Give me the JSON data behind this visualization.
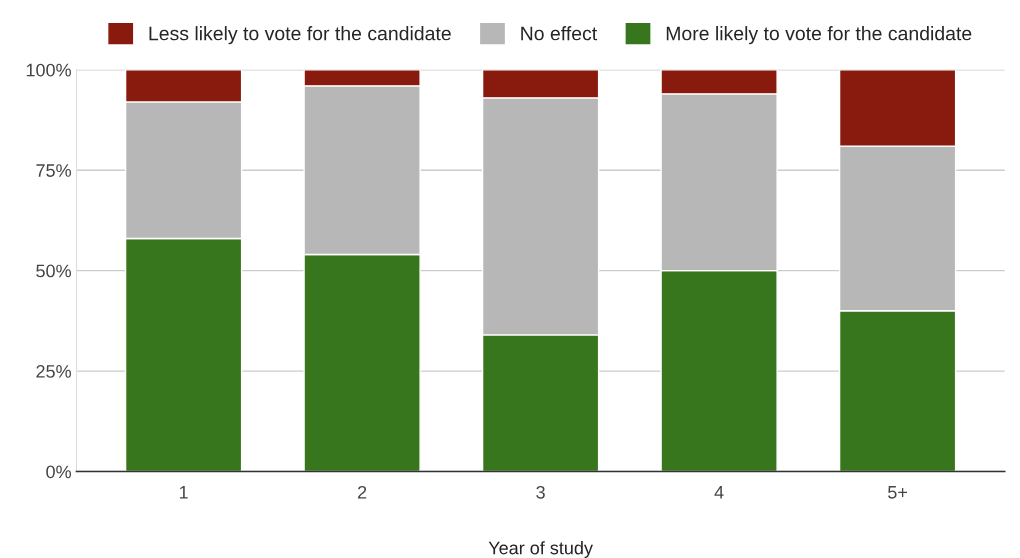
{
  "chart_data": {
    "type": "bar",
    "stacked": true,
    "xlabel": "Year of study",
    "categories": [
      "1",
      "2",
      "3",
      "4",
      "5+"
    ],
    "series": [
      {
        "name": "More likely to vote for the candidate",
        "color": "#38761d",
        "values": [
          58,
          54,
          34,
          50,
          40
        ]
      },
      {
        "name": "No effect",
        "color": "#b7b7b7",
        "values": [
          34,
          42,
          59,
          44,
          41
        ]
      },
      {
        "name": "Less likely to vote for the candidate",
        "color": "#891a0e",
        "values": [
          8,
          4,
          7,
          6,
          19
        ]
      }
    ],
    "ylim": [
      0,
      100
    ],
    "yticks": [
      {
        "value": 0,
        "label": "0%"
      },
      {
        "value": 25,
        "label": "25%"
      },
      {
        "value": 50,
        "label": "50%"
      },
      {
        "value": 75,
        "label": "75%"
      },
      {
        "value": 100,
        "label": "100%"
      }
    ],
    "grid": "y",
    "legend": "top"
  }
}
